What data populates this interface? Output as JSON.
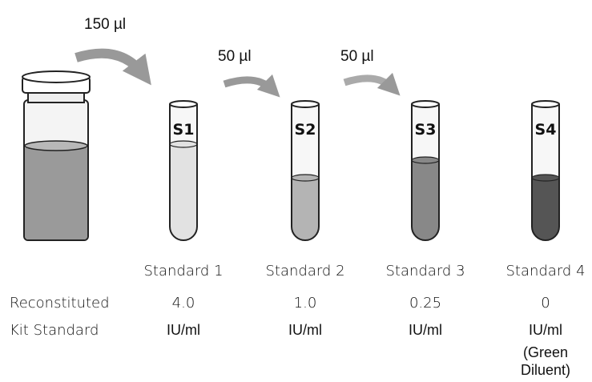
{
  "transfers": [
    {
      "volume": "150 µl"
    },
    {
      "volume": "50 µl"
    },
    {
      "volume": "50 µl"
    }
  ],
  "row_labels": [
    "Reconstituted",
    "Kit Standard"
  ],
  "tubes": [
    {
      "label": "S1",
      "name": "Standard 1",
      "concentration": "4.0",
      "unit": "IU/ml"
    },
    {
      "label": "S2",
      "name": "Standard 2",
      "concentration": "1.0",
      "unit": "IU/ml"
    },
    {
      "label": "S3",
      "name": "Standard 3",
      "concentration": "0.25",
      "unit": "IU/ml"
    },
    {
      "label": "S4",
      "name": "Standard 4",
      "concentration": "0",
      "unit": "IU/ml",
      "note": [
        "(Green",
        "Diluent)"
      ]
    }
  ]
}
